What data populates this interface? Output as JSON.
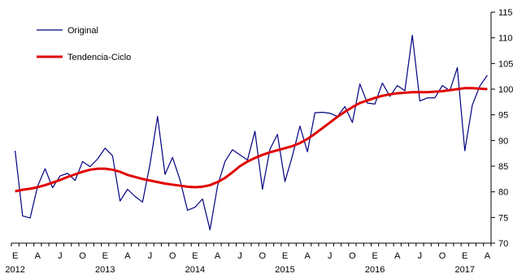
{
  "chart_data": {
    "type": "line",
    "title": "",
    "xlabel": "",
    "ylabel": "",
    "ylim": [
      70,
      115
    ],
    "y_ticks": [
      70,
      75,
      80,
      85,
      90,
      95,
      100,
      105,
      110,
      115
    ],
    "y_axis_side": "right",
    "grid": false,
    "legend_position": "top-left",
    "month_tick_labels": [
      "E",
      "A",
      "J",
      "O",
      "E",
      "A",
      "J",
      "O",
      "E",
      "A",
      "J",
      "O",
      "E",
      "A",
      "J",
      "O",
      "E",
      "A",
      "J",
      "O",
      "E",
      "A"
    ],
    "year_labels": [
      {
        "label": "2012",
        "month_index": 0
      },
      {
        "label": "2013",
        "month_index": 12
      },
      {
        "label": "2014",
        "month_index": 24
      },
      {
        "label": "2015",
        "month_index": 36
      },
      {
        "label": "2016",
        "month_index": 48
      },
      {
        "label": "2017",
        "month_index": 60
      }
    ],
    "x_start": "2012-01",
    "x_end": "2017-04",
    "series": [
      {
        "name": "Original",
        "color": "#000080",
        "values": [
          88.0,
          75.3,
          74.9,
          81.1,
          84.5,
          80.8,
          83.1,
          83.6,
          82.2,
          85.9,
          84.9,
          86.4,
          88.5,
          87.0,
          78.2,
          80.5,
          79.1,
          78.0,
          85.4,
          94.7,
          83.4,
          86.7,
          82.3,
          76.4,
          77.0,
          78.6,
          72.6,
          81.1,
          85.9,
          88.2,
          87.2,
          86.2,
          91.8,
          80.5,
          88.3,
          91.2,
          82.0,
          87.0,
          92.8,
          87.8,
          95.4,
          95.5,
          95.3,
          94.7,
          96.6,
          93.5,
          101.0,
          97.3,
          97.1,
          101.2,
          98.6,
          100.7,
          99.7,
          110.5,
          97.7,
          98.3,
          98.3,
          100.7,
          99.7,
          104.2,
          88.0,
          96.9,
          100.6,
          102.7
        ]
      },
      {
        "name": "Tendencia-Ciclo",
        "color": "#e00000",
        "values": [
          80.1,
          80.4,
          80.6,
          80.9,
          81.3,
          81.8,
          82.3,
          82.9,
          83.4,
          83.9,
          84.3,
          84.5,
          84.5,
          84.3,
          83.9,
          83.3,
          82.9,
          82.5,
          82.2,
          81.9,
          81.6,
          81.4,
          81.2,
          81.0,
          80.9,
          81.0,
          81.3,
          81.9,
          82.7,
          83.8,
          85.0,
          85.9,
          86.6,
          87.2,
          87.7,
          88.1,
          88.5,
          88.9,
          89.5,
          90.3,
          91.3,
          92.4,
          93.5,
          94.6,
          95.6,
          96.5,
          97.3,
          97.8,
          98.3,
          98.7,
          99.0,
          99.2,
          99.3,
          99.4,
          99.4,
          99.4,
          99.5,
          99.6,
          99.8,
          100.0,
          100.2,
          100.2,
          100.1,
          100.0
        ]
      }
    ]
  }
}
